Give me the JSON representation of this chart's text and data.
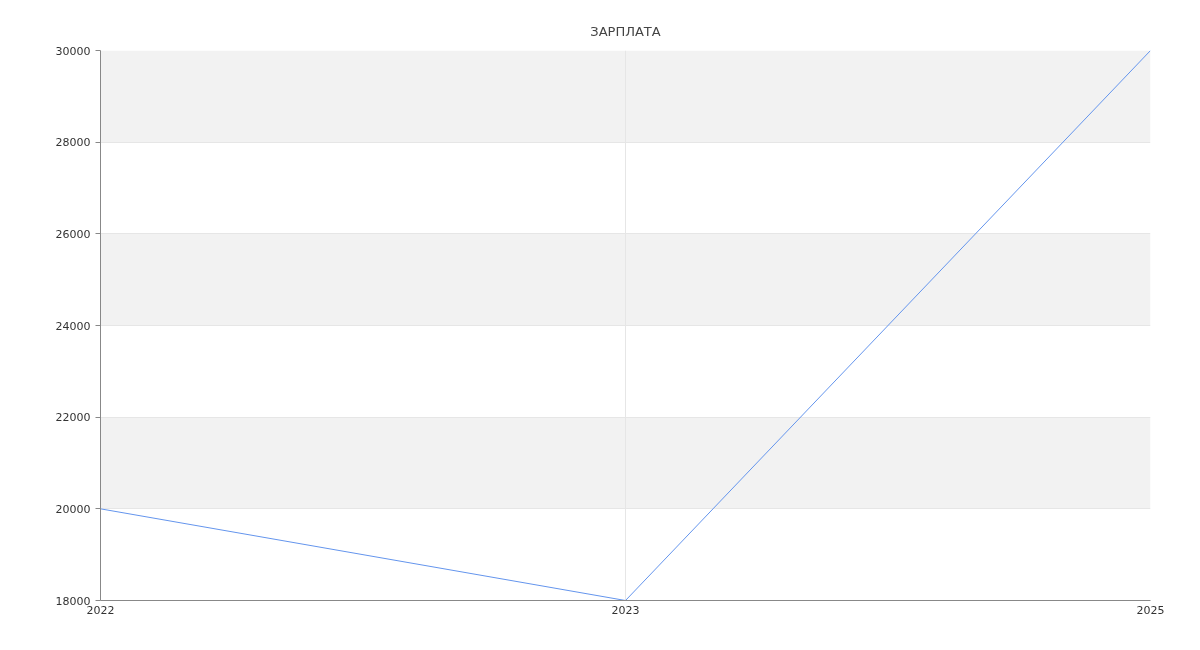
{
  "chart_data": {
    "type": "line",
    "title": "ЗАРПЛАТА",
    "categories": [
      "2022",
      "2023",
      "2025"
    ],
    "series": [
      {
        "color": "#6495ed",
        "values": [
          20000,
          18000,
          30000
        ]
      }
    ],
    "ylim": [
      18000,
      30000
    ],
    "yticks": [
      18000,
      20000,
      22000,
      24000,
      26000,
      28000,
      30000
    ],
    "grid": true
  }
}
